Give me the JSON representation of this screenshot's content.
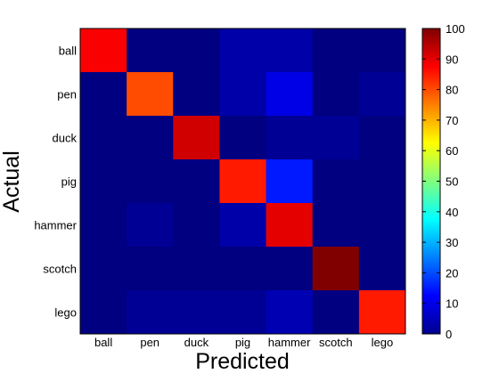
{
  "chart_data": {
    "type": "heatmap",
    "xlabel": "Predicted",
    "ylabel": "Actual",
    "x_categories": [
      "ball",
      "pen",
      "duck",
      "pig",
      "hammer",
      "scotch",
      "lego"
    ],
    "y_categories": [
      "ball",
      "pen",
      "duck",
      "pig",
      "hammer",
      "scotch",
      "lego"
    ],
    "values": [
      [
        88,
        0,
        0,
        4,
        4,
        0,
        0
      ],
      [
        0,
        80,
        0,
        4,
        10,
        0,
        2
      ],
      [
        0,
        0,
        92,
        0,
        2,
        2,
        0
      ],
      [
        0,
        0,
        0,
        85,
        15,
        0,
        0
      ],
      [
        0,
        2,
        0,
        4,
        90,
        0,
        0
      ],
      [
        0,
        0,
        0,
        0,
        0,
        100,
        0
      ],
      [
        0,
        2,
        2,
        2,
        5,
        0,
        85
      ]
    ],
    "colorscale": "jet",
    "colorbar": {
      "range": [
        0,
        100
      ],
      "ticks": [
        "0",
        "10",
        "20",
        "30",
        "40",
        "50",
        "60",
        "70",
        "80",
        "90",
        "100"
      ]
    }
  }
}
